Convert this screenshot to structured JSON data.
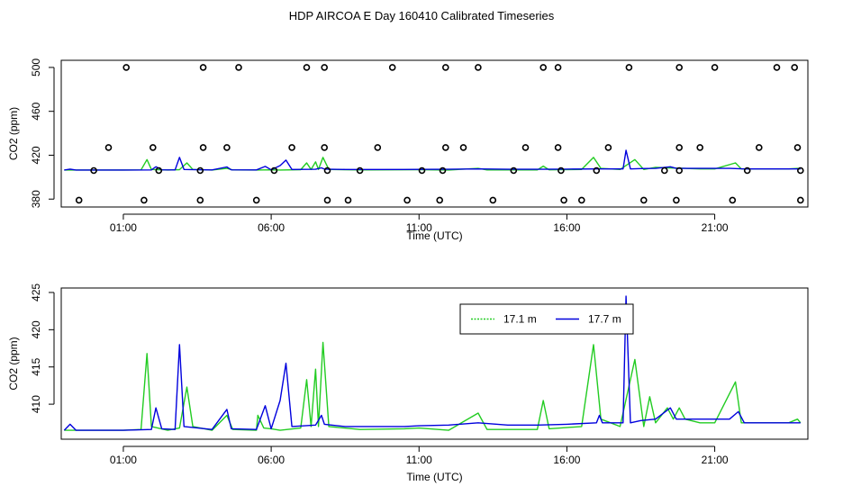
{
  "title": "HDP AIRCOA E  Day 160410  Calibrated Timeseries",
  "colors": {
    "green": "#22cc22",
    "blue": "#0000dd",
    "black": "#000000"
  },
  "chart_data": [
    {
      "type": "line+scatter",
      "xlabel": "Time (UTC)",
      "ylabel": "CO2 (ppm)",
      "xlim": [
        -1.1,
        24.15
      ],
      "ylim": [
        372.8,
        506.5
      ],
      "x_ticks": [
        1,
        6,
        11,
        16,
        21
      ],
      "x_tick_labels": [
        "01:00",
        "06:00",
        "11:00",
        "16:00",
        "21:00"
      ],
      "y_ticks": [
        380,
        420,
        460,
        500
      ],
      "y_tick_labels": [
        "380",
        "420",
        "460",
        "500"
      ],
      "series": [
        {
          "color": "#22cc22",
          "points": [
            [
              -1,
              406.5
            ],
            [
              1.0,
              406.5
            ],
            [
              1.6,
              406.6
            ],
            [
              1.8,
              416
            ],
            [
              1.95,
              407
            ],
            [
              2.5,
              406.5
            ],
            [
              2.9,
              406.8
            ],
            [
              3.15,
              413
            ],
            [
              3.35,
              407
            ],
            [
              4.0,
              406.5
            ],
            [
              4.5,
              408
            ],
            [
              4.7,
              406.6
            ],
            [
              5.5,
              406.5
            ],
            [
              6.0,
              406.7
            ],
            [
              6.3,
              406.5
            ],
            [
              7.0,
              406.8
            ],
            [
              7.2,
              413
            ],
            [
              7.35,
              407
            ],
            [
              7.5,
              414
            ],
            [
              7.6,
              407
            ],
            [
              7.75,
              418
            ],
            [
              7.95,
              407
            ],
            [
              9.0,
              406.6
            ],
            [
              11.0,
              406.8
            ],
            [
              12.0,
              406.5
            ],
            [
              13.0,
              408
            ],
            [
              13.3,
              406.6
            ],
            [
              15.0,
              406.6
            ],
            [
              15.2,
              410
            ],
            [
              15.4,
              406.7
            ],
            [
              16.5,
              407
            ],
            [
              16.9,
              418
            ],
            [
              17.15,
              408
            ],
            [
              17.8,
              407
            ],
            [
              18.3,
              416
            ],
            [
              18.6,
              407
            ],
            [
              19.0,
              409
            ],
            [
              19.4,
              408.5
            ],
            [
              20.0,
              408
            ],
            [
              20.5,
              407.5
            ],
            [
              21.0,
              407.5
            ],
            [
              21.7,
              413
            ],
            [
              21.9,
              407.5
            ],
            [
              23.5,
              407.5
            ],
            [
              23.8,
              408
            ],
            [
              23.9,
              407.5
            ]
          ]
        },
        {
          "color": "#0000dd",
          "points": [
            [
              -1,
              406.5
            ],
            [
              -0.8,
              407.3
            ],
            [
              -0.6,
              406.5
            ],
            [
              1.0,
              406.5
            ],
            [
              1.95,
              406.6
            ],
            [
              2.1,
              409.5
            ],
            [
              2.3,
              406.7
            ],
            [
              2.75,
              406.6
            ],
            [
              2.9,
              418
            ],
            [
              3.05,
              407
            ],
            [
              4.0,
              406.6
            ],
            [
              4.5,
              409.3
            ],
            [
              4.65,
              406.7
            ],
            [
              5.5,
              406.6
            ],
            [
              5.8,
              409.8
            ],
            [
              6.0,
              406.7
            ],
            [
              6.3,
              410.5
            ],
            [
              6.5,
              415.5
            ],
            [
              6.7,
              407
            ],
            [
              7.5,
              407.2
            ],
            [
              7.7,
              408.5
            ],
            [
              7.8,
              407.3
            ],
            [
              8.5,
              407
            ],
            [
              10.0,
              407
            ],
            [
              10.5,
              407
            ],
            [
              11.0,
              407.1
            ],
            [
              12.0,
              407.2
            ],
            [
              13.0,
              407.5
            ],
            [
              14.0,
              407.2
            ],
            [
              15.0,
              407.2
            ],
            [
              16.0,
              407.3
            ],
            [
              17.0,
              407.5
            ],
            [
              17.9,
              407.5
            ],
            [
              18.0,
              424.5
            ],
            [
              18.15,
              407.5
            ],
            [
              18.5,
              407.8
            ],
            [
              19.0,
              408
            ],
            [
              19.5,
              409.5
            ],
            [
              19.7,
              408
            ],
            [
              20.0,
              408
            ],
            [
              20.5,
              408
            ],
            [
              21.0,
              408
            ],
            [
              21.5,
              408
            ],
            [
              22.0,
              407.5
            ],
            [
              22.5,
              407.5
            ],
            [
              23.5,
              407.5
            ],
            [
              23.9,
              407.5
            ]
          ]
        }
      ],
      "scatter_points": [
        [
          1.1,
          500
        ],
        [
          3.7,
          500
        ],
        [
          4.9,
          500
        ],
        [
          7.2,
          500
        ],
        [
          7.8,
          500
        ],
        [
          10.1,
          500
        ],
        [
          11.9,
          500
        ],
        [
          13.0,
          500
        ],
        [
          15.2,
          500
        ],
        [
          15.7,
          500
        ],
        [
          18.1,
          500
        ],
        [
          19.8,
          500
        ],
        [
          21.0,
          500
        ],
        [
          23.1,
          500
        ],
        [
          23.7,
          500
        ],
        [
          0.5,
          427
        ],
        [
          2.0,
          427
        ],
        [
          3.7,
          427
        ],
        [
          4.5,
          427
        ],
        [
          6.7,
          427
        ],
        [
          7.8,
          427
        ],
        [
          9.6,
          427
        ],
        [
          11.9,
          427
        ],
        [
          12.5,
          427
        ],
        [
          14.6,
          427
        ],
        [
          15.7,
          427
        ],
        [
          17.4,
          427
        ],
        [
          19.8,
          427
        ],
        [
          20.5,
          427
        ],
        [
          22.5,
          427
        ],
        [
          23.8,
          427
        ],
        [
          0.0,
          406
        ],
        [
          2.2,
          406
        ],
        [
          3.6,
          406
        ],
        [
          6.1,
          406
        ],
        [
          7.9,
          406
        ],
        [
          9.0,
          406
        ],
        [
          11.1,
          406
        ],
        [
          11.8,
          406
        ],
        [
          14.2,
          406
        ],
        [
          15.8,
          406
        ],
        [
          17.0,
          406
        ],
        [
          19.3,
          406
        ],
        [
          19.8,
          406
        ],
        [
          22.1,
          406
        ],
        [
          23.9,
          406
        ],
        [
          -0.5,
          379
        ],
        [
          1.7,
          379
        ],
        [
          3.6,
          379
        ],
        [
          5.5,
          379
        ],
        [
          7.9,
          379
        ],
        [
          8.6,
          379
        ],
        [
          10.6,
          379
        ],
        [
          11.7,
          379
        ],
        [
          13.5,
          379
        ],
        [
          15.9,
          379
        ],
        [
          16.5,
          379
        ],
        [
          18.6,
          379
        ],
        [
          19.7,
          379
        ],
        [
          21.6,
          379
        ],
        [
          23.9,
          379
        ]
      ]
    },
    {
      "type": "line",
      "xlabel": "Time (UTC)",
      "ylabel": "CO2 (ppm)",
      "xlim": [
        -1.1,
        24.15
      ],
      "ylim": [
        405.3,
        425.6
      ],
      "x_ticks": [
        1,
        6,
        11,
        16,
        21
      ],
      "x_tick_labels": [
        "01:00",
        "06:00",
        "11:00",
        "16:00",
        "21:00"
      ],
      "y_ticks": [
        410,
        415,
        420,
        425
      ],
      "y_tick_labels": [
        "410",
        "415",
        "420",
        "425"
      ],
      "legend": {
        "position": "top-right",
        "entries": [
          "17.1 m",
          "17.7 m"
        ]
      },
      "series": [
        {
          "name": "17.1 m",
          "color": "#22cc22",
          "points": [
            [
              -1,
              406.5
            ],
            [
              1.0,
              406.5
            ],
            [
              1.6,
              406.6
            ],
            [
              1.8,
              416.8
            ],
            [
              1.95,
              407
            ],
            [
              2.5,
              406.5
            ],
            [
              2.9,
              406.8
            ],
            [
              3.15,
              412.3
            ],
            [
              3.35,
              407
            ],
            [
              4.0,
              406.5
            ],
            [
              4.5,
              408.5
            ],
            [
              4.7,
              406.6
            ],
            [
              5.5,
              406.5
            ],
            [
              5.55,
              408.5
            ],
            [
              5.75,
              406.8
            ],
            [
              6.0,
              406.7
            ],
            [
              6.3,
              406.5
            ],
            [
              7.0,
              406.8
            ],
            [
              7.2,
              413.3
            ],
            [
              7.35,
              407
            ],
            [
              7.5,
              414.7
            ],
            [
              7.6,
              407
            ],
            [
              7.75,
              418.3
            ],
            [
              7.95,
              407
            ],
            [
              9.0,
              406.6
            ],
            [
              10.5,
              406.7
            ],
            [
              11.0,
              406.8
            ],
            [
              12.0,
              406.5
            ],
            [
              13.0,
              408.8
            ],
            [
              13.3,
              406.6
            ],
            [
              15.0,
              406.6
            ],
            [
              15.2,
              410.5
            ],
            [
              15.4,
              406.7
            ],
            [
              16.5,
              407
            ],
            [
              16.9,
              418
            ],
            [
              17.15,
              408
            ],
            [
              17.8,
              407
            ],
            [
              18.3,
              416
            ],
            [
              18.6,
              407
            ],
            [
              18.8,
              411
            ],
            [
              19.0,
              407.5
            ],
            [
              19.4,
              409.5
            ],
            [
              19.6,
              408
            ],
            [
              19.8,
              409.5
            ],
            [
              20.0,
              408
            ],
            [
              20.5,
              407.5
            ],
            [
              21.0,
              407.5
            ],
            [
              21.7,
              413
            ],
            [
              21.9,
              407.5
            ],
            [
              23.5,
              407.5
            ],
            [
              23.8,
              408
            ],
            [
              23.9,
              407.5
            ]
          ]
        },
        {
          "name": "17.7 m",
          "color": "#0000dd",
          "points": [
            [
              -1,
              406.5
            ],
            [
              -0.8,
              407.3
            ],
            [
              -0.6,
              406.5
            ],
            [
              1.0,
              406.5
            ],
            [
              1.95,
              406.6
            ],
            [
              2.1,
              409.5
            ],
            [
              2.3,
              406.7
            ],
            [
              2.75,
              406.6
            ],
            [
              2.9,
              418
            ],
            [
              3.05,
              407
            ],
            [
              4.0,
              406.6
            ],
            [
              4.5,
              409.3
            ],
            [
              4.65,
              406.7
            ],
            [
              5.5,
              406.6
            ],
            [
              5.8,
              409.8
            ],
            [
              6.0,
              406.7
            ],
            [
              6.3,
              410.5
            ],
            [
              6.5,
              415.5
            ],
            [
              6.7,
              407
            ],
            [
              7.5,
              407.2
            ],
            [
              7.7,
              408.5
            ],
            [
              7.8,
              407.3
            ],
            [
              8.5,
              407
            ],
            [
              10.0,
              407
            ],
            [
              10.5,
              407
            ],
            [
              11.0,
              407.1
            ],
            [
              12.0,
              407.2
            ],
            [
              13.0,
              407.5
            ],
            [
              14.0,
              407.2
            ],
            [
              15.0,
              407.2
            ],
            [
              16.0,
              407.3
            ],
            [
              17.0,
              407.5
            ],
            [
              17.1,
              408.5
            ],
            [
              17.2,
              407.5
            ],
            [
              17.9,
              407.5
            ],
            [
              18.0,
              424.5
            ],
            [
              18.15,
              407.5
            ],
            [
              18.5,
              407.8
            ],
            [
              19.0,
              408
            ],
            [
              19.5,
              409.5
            ],
            [
              19.7,
              408
            ],
            [
              20.0,
              408
            ],
            [
              20.5,
              408
            ],
            [
              21.0,
              408
            ],
            [
              21.5,
              408
            ],
            [
              21.8,
              409
            ],
            [
              22.0,
              407.5
            ],
            [
              22.5,
              407.5
            ],
            [
              23.5,
              407.5
            ],
            [
              23.9,
              407.5
            ]
          ]
        }
      ]
    }
  ]
}
